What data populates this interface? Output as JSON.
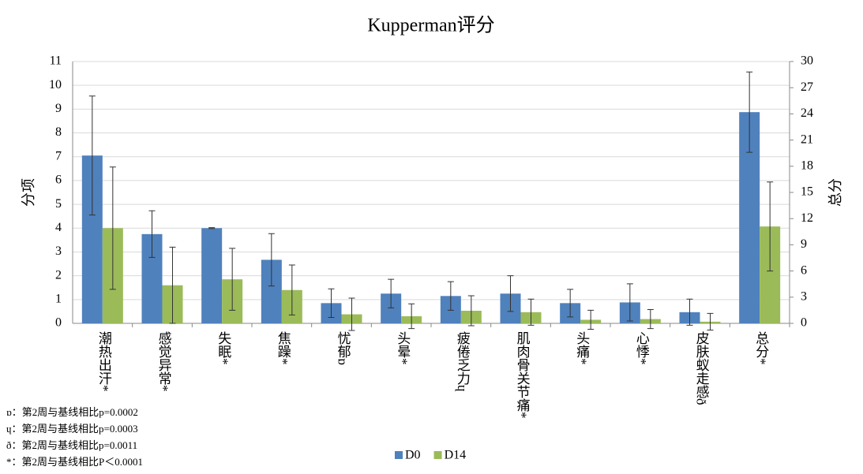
{
  "chart_data": {
    "type": "bar",
    "title": "Kupperman评分",
    "y_label": "分项",
    "y2_label": "总分",
    "categories": [
      "潮热出汗*",
      "感觉异常*",
      "失眠*",
      "焦躁*",
      "忧郁ɒ",
      "头晕*",
      "疲倦乏力ɥ",
      "肌肉骨关节痛*",
      "头痛*",
      "心悸*",
      "皮肤蚁走感ð",
      "总分*"
    ],
    "series": [
      {
        "name": "D0",
        "color": "#4f81bd",
        "axis": "y",
        "values": [
          7.05,
          3.75,
          4.0,
          2.67,
          0.85,
          1.25,
          1.15,
          1.25,
          0.85,
          0.88,
          0.47,
          null
        ],
        "errors": [
          2.5,
          0.98,
          0.02,
          1.1,
          0.6,
          0.6,
          0.6,
          0.75,
          0.58,
          0.78,
          0.55,
          null
        ]
      },
      {
        "name": "D14",
        "color": "#9bbb59",
        "axis": "y",
        "values": [
          4.0,
          1.6,
          1.85,
          1.4,
          0.38,
          0.3,
          0.53,
          0.47,
          0.15,
          0.18,
          0.07,
          null
        ],
        "errors": [
          2.57,
          1.6,
          1.3,
          1.05,
          0.68,
          0.52,
          0.63,
          0.55,
          0.4,
          0.4,
          0.35,
          null
        ]
      },
      {
        "name": "D0",
        "color": "#4f81bd",
        "axis": "y2",
        "values": [
          null,
          null,
          null,
          null,
          null,
          null,
          null,
          null,
          null,
          null,
          null,
          24.2
        ],
        "errors": [
          null,
          null,
          null,
          null,
          null,
          null,
          null,
          null,
          null,
          null,
          null,
          4.6
        ]
      },
      {
        "name": "D14",
        "color": "#9bbb59",
        "axis": "y2",
        "values": [
          null,
          null,
          null,
          null,
          null,
          null,
          null,
          null,
          null,
          null,
          null,
          11.1
        ],
        "errors": [
          null,
          null,
          null,
          null,
          null,
          null,
          null,
          null,
          null,
          null,
          null,
          5.1
        ]
      }
    ],
    "ylim": [
      0,
      11
    ],
    "yticks": [
      0,
      1,
      2,
      3,
      4,
      5,
      6,
      7,
      8,
      9,
      10,
      11
    ],
    "y2lim": [
      0,
      30
    ],
    "y2ticks": [
      0,
      3,
      6,
      9,
      12,
      15,
      18,
      21,
      24,
      27,
      30
    ],
    "grid": true,
    "legend": "bottom",
    "notes": [
      "ɒ：第2周与基线相比p=0.0002",
      "ɥ：第2周与基线相比p=0.0003",
      "ð：第2周与基线相比p=0.0011",
      "*：第2周与基线相比P＜0.0001"
    ]
  }
}
